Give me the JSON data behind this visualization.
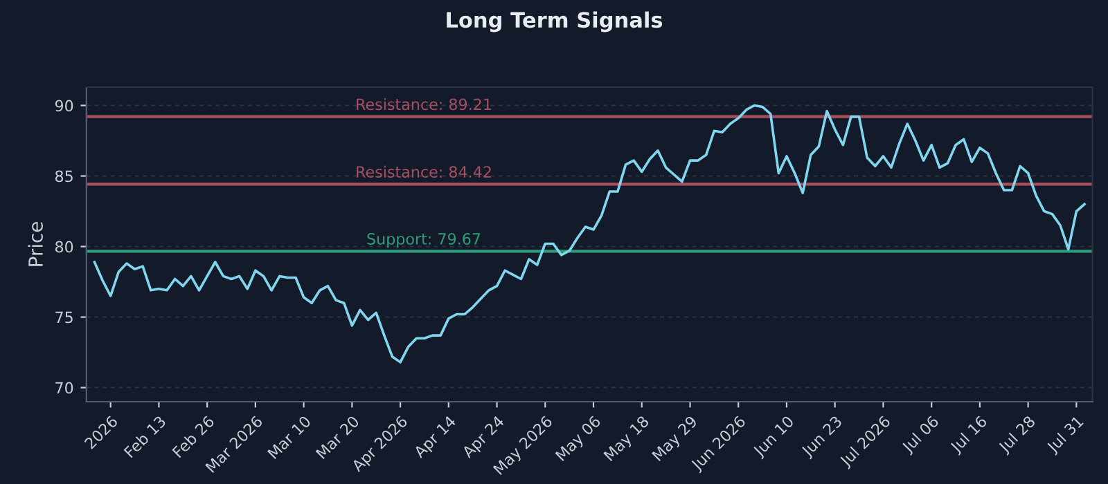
{
  "chart_data": {
    "type": "line",
    "title": "Long Term Signals",
    "ylabel": "Price",
    "categories": [
      null,
      null,
      "2026",
      null,
      null,
      null,
      null,
      null,
      "Feb 13",
      null,
      null,
      null,
      null,
      null,
      "Feb 26",
      null,
      null,
      null,
      null,
      null,
      "Mar 2026",
      null,
      null,
      null,
      null,
      null,
      "Mar 10",
      null,
      null,
      null,
      null,
      null,
      "Mar 20",
      null,
      null,
      null,
      null,
      null,
      "Apr 2026",
      null,
      null,
      null,
      null,
      null,
      "Apr 14",
      null,
      null,
      null,
      null,
      null,
      "Apr 24",
      null,
      null,
      null,
      null,
      null,
      "May 2026",
      null,
      null,
      null,
      null,
      null,
      "May 06",
      null,
      null,
      null,
      null,
      null,
      "May 18",
      null,
      null,
      null,
      null,
      null,
      "May 29",
      null,
      null,
      null,
      null,
      null,
      "Jun 2026",
      null,
      null,
      null,
      null,
      null,
      "Jun 10",
      null,
      null,
      null,
      null,
      null,
      "Jun 23",
      null,
      null,
      null,
      null,
      null,
      "Jul 2026",
      null,
      null,
      null,
      null,
      null,
      "Jul 06",
      null,
      null,
      null,
      null,
      null,
      "Jul 16",
      null,
      null,
      null,
      null,
      null,
      "Jul 28",
      null,
      null,
      null,
      null,
      null,
      "Jul 31",
      null
    ],
    "series": [
      {
        "color": "#7fd6ee",
        "values": [
          78.9,
          77.6,
          76.5,
          78.2,
          78.8,
          78.4,
          78.6,
          76.9,
          77.0,
          76.9,
          77.7,
          77.2,
          77.9,
          76.9,
          77.9,
          78.9,
          77.9,
          77.7,
          77.9,
          77.0,
          78.3,
          77.9,
          76.9,
          77.9,
          77.8,
          77.8,
          76.4,
          76.0,
          76.9,
          77.2,
          76.2,
          76.0,
          74.4,
          75.5,
          74.8,
          75.3,
          73.7,
          72.2,
          71.8,
          72.9,
          73.5,
          73.5,
          73.7,
          73.7,
          74.9,
          75.2,
          75.2,
          75.7,
          76.3,
          76.9,
          77.2,
          78.3,
          78.0,
          77.7,
          79.1,
          78.7,
          80.2,
          80.2,
          79.4,
          79.7,
          80.6,
          81.4,
          81.2,
          82.2,
          83.9,
          83.9,
          85.8,
          86.1,
          85.3,
          86.2,
          86.8,
          85.6,
          85.1,
          84.6,
          86.1,
          86.1,
          86.5,
          88.2,
          88.1,
          88.7,
          89.1,
          89.7,
          90.0,
          89.9,
          89.4,
          85.2,
          86.4,
          85.2,
          83.8,
          86.5,
          87.1,
          89.6,
          88.3,
          87.2,
          89.2,
          89.2,
          86.3,
          85.7,
          86.4,
          85.6,
          87.3,
          88.7,
          87.5,
          86.1,
          87.2,
          85.6,
          85.9,
          87.2,
          87.6,
          86.0,
          87.0,
          86.6,
          85.2,
          84.0,
          84.0,
          85.7,
          85.2,
          83.6,
          82.5,
          82.3,
          81.5,
          79.8,
          82.5,
          83.0
        ]
      }
    ],
    "ylim": [
      69,
      91.3
    ],
    "yticks": [
      70,
      75,
      80,
      85,
      90
    ],
    "grid": "y",
    "ref_lines": [
      {
        "axis": "y",
        "value": 89.21,
        "label": "Resistance: 89.21",
        "color": "#a8505f"
      },
      {
        "axis": "y",
        "value": 84.42,
        "label": "Resistance: 84.42",
        "color": "#a8505f"
      },
      {
        "axis": "y",
        "value": 79.67,
        "label": "Support: 79.67",
        "color": "#2f9c7a"
      }
    ]
  }
}
